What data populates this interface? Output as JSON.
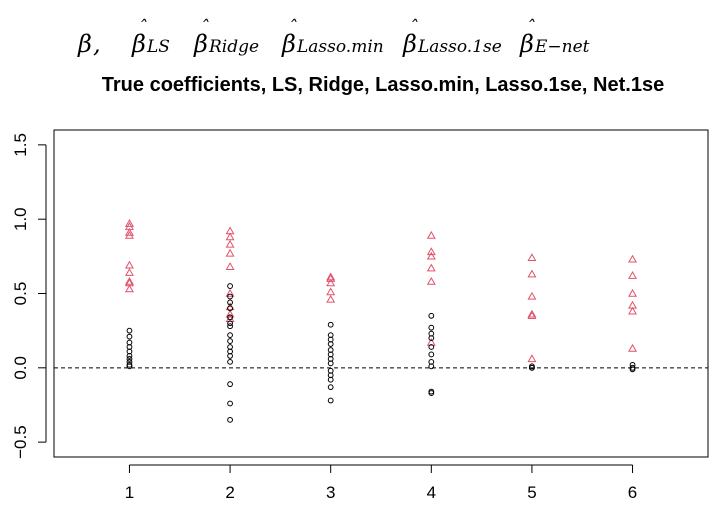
{
  "header": {
    "symbols": [
      {
        "base": "β",
        "hat": false,
        "sub": "",
        "suffix": ","
      },
      {
        "base": "β",
        "hat": true,
        "sub": "LS",
        "suffix": ""
      },
      {
        "base": "β",
        "hat": true,
        "sub": "Ridge",
        "suffix": ""
      },
      {
        "base": "β",
        "hat": true,
        "sub": "Lasso.min",
        "suffix": ""
      },
      {
        "base": "β",
        "hat": true,
        "sub": "Lasso.1se",
        "suffix": ""
      },
      {
        "base": "β",
        "hat": true,
        "sub": "E−net",
        "suffix": ""
      }
    ]
  },
  "chart_data": {
    "type": "scatter",
    "title": "True coefficients, LS, Ridge, Lasso.min, Lasso.1se, Net.1se",
    "xlabel": "",
    "ylabel": "",
    "x_ticks": [
      "1",
      "2",
      "3",
      "4",
      "5",
      "6"
    ],
    "y_ticks": [
      "−0.5",
      "0.0",
      "0.5",
      "1.0",
      "1.5"
    ],
    "xlim": [
      0.25,
      6.75
    ],
    "ylim": [
      -0.6,
      1.6
    ],
    "reference_line": {
      "y": 0,
      "style": "dashed"
    },
    "grid": false,
    "series": [
      {
        "marker": "triangle",
        "color": "#DF536B",
        "points": [
          {
            "x": 1,
            "y": 0.97
          },
          {
            "x": 1,
            "y": 0.95
          },
          {
            "x": 1,
            "y": 0.91
          },
          {
            "x": 1,
            "y": 0.89
          },
          {
            "x": 1,
            "y": 0.69
          },
          {
            "x": 1,
            "y": 0.64
          },
          {
            "x": 1,
            "y": 0.58
          },
          {
            "x": 1,
            "y": 0.57
          },
          {
            "x": 1,
            "y": 0.53
          },
          {
            "x": 2,
            "y": 0.92
          },
          {
            "x": 2,
            "y": 0.88
          },
          {
            "x": 2,
            "y": 0.83
          },
          {
            "x": 2,
            "y": 0.77
          },
          {
            "x": 2,
            "y": 0.68
          },
          {
            "x": 2,
            "y": 0.5
          },
          {
            "x": 2,
            "y": 0.41
          },
          {
            "x": 2,
            "y": 0.36
          },
          {
            "x": 2,
            "y": 0.33
          },
          {
            "x": 3,
            "y": 0.61
          },
          {
            "x": 3,
            "y": 0.6
          },
          {
            "x": 3,
            "y": 0.57
          },
          {
            "x": 3,
            "y": 0.51
          },
          {
            "x": 3,
            "y": 0.46
          },
          {
            "x": 4,
            "y": 0.89
          },
          {
            "x": 4,
            "y": 0.78
          },
          {
            "x": 4,
            "y": 0.75
          },
          {
            "x": 4,
            "y": 0.67
          },
          {
            "x": 4,
            "y": 0.58
          },
          {
            "x": 4,
            "y": 0.17
          },
          {
            "x": 5,
            "y": 0.74
          },
          {
            "x": 5,
            "y": 0.63
          },
          {
            "x": 5,
            "y": 0.48
          },
          {
            "x": 5,
            "y": 0.36
          },
          {
            "x": 5,
            "y": 0.35
          },
          {
            "x": 5,
            "y": 0.06
          },
          {
            "x": 6,
            "y": 0.73
          },
          {
            "x": 6,
            "y": 0.62
          },
          {
            "x": 6,
            "y": 0.5
          },
          {
            "x": 6,
            "y": 0.42
          },
          {
            "x": 6,
            "y": 0.38
          },
          {
            "x": 6,
            "y": 0.13
          }
        ]
      },
      {
        "marker": "circle",
        "color": "#000000",
        "points": [
          {
            "x": 1,
            "y": 0.25
          },
          {
            "x": 1,
            "y": 0.21
          },
          {
            "x": 1,
            "y": 0.17
          },
          {
            "x": 1,
            "y": 0.14
          },
          {
            "x": 1,
            "y": 0.11
          },
          {
            "x": 1,
            "y": 0.08
          },
          {
            "x": 1,
            "y": 0.06
          },
          {
            "x": 1,
            "y": 0.04
          },
          {
            "x": 1,
            "y": 0.02
          },
          {
            "x": 1,
            "y": 0.01
          },
          {
            "x": 2,
            "y": 0.55
          },
          {
            "x": 2,
            "y": 0.48
          },
          {
            "x": 2,
            "y": 0.44
          },
          {
            "x": 2,
            "y": 0.4
          },
          {
            "x": 2,
            "y": 0.34
          },
          {
            "x": 2,
            "y": 0.3
          },
          {
            "x": 2,
            "y": 0.28
          },
          {
            "x": 2,
            "y": 0.22
          },
          {
            "x": 2,
            "y": 0.18
          },
          {
            "x": 2,
            "y": 0.14
          },
          {
            "x": 2,
            "y": 0.11
          },
          {
            "x": 2,
            "y": 0.08
          },
          {
            "x": 2,
            "y": 0.04
          },
          {
            "x": 2,
            "y": -0.11
          },
          {
            "x": 2,
            "y": -0.24
          },
          {
            "x": 2,
            "y": -0.35
          },
          {
            "x": 3,
            "y": 0.29
          },
          {
            "x": 3,
            "y": 0.22
          },
          {
            "x": 3,
            "y": 0.19
          },
          {
            "x": 3,
            "y": 0.16
          },
          {
            "x": 3,
            "y": 0.12
          },
          {
            "x": 3,
            "y": 0.09
          },
          {
            "x": 3,
            "y": 0.06
          },
          {
            "x": 3,
            "y": 0.03
          },
          {
            "x": 3,
            "y": -0.02
          },
          {
            "x": 3,
            "y": -0.05
          },
          {
            "x": 3,
            "y": -0.08
          },
          {
            "x": 3,
            "y": -0.13
          },
          {
            "x": 3,
            "y": -0.22
          },
          {
            "x": 4,
            "y": 0.35
          },
          {
            "x": 4,
            "y": 0.27
          },
          {
            "x": 4,
            "y": 0.23
          },
          {
            "x": 4,
            "y": 0.2
          },
          {
            "x": 4,
            "y": 0.14
          },
          {
            "x": 4,
            "y": 0.09
          },
          {
            "x": 4,
            "y": 0.04
          },
          {
            "x": 4,
            "y": 0.01
          },
          {
            "x": 4,
            "y": -0.16
          },
          {
            "x": 4,
            "y": -0.17
          },
          {
            "x": 5,
            "y": 0.01
          },
          {
            "x": 5,
            "y": 0.0
          },
          {
            "x": 5,
            "y": 0.0
          },
          {
            "x": 6,
            "y": 0.02
          },
          {
            "x": 6,
            "y": 0.0
          },
          {
            "x": 6,
            "y": -0.01
          }
        ]
      }
    ]
  }
}
